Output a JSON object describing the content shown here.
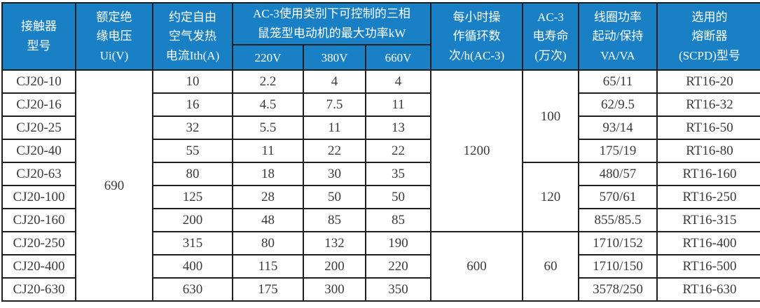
{
  "colors": {
    "header_bg": "#1a80c5",
    "header_text": "#ffffff",
    "body_text": "#3a3a3a",
    "border": "#1f1f1f"
  },
  "header": {
    "model": "接触器\n型号",
    "rated_insulation_voltage": "额定绝\n缘电压\nUi(V)",
    "thermal_current": "约定自由\n空气发热\n电流Ith(A)",
    "ac3_power_group": "AC-3使用类别下可控制的三相\n鼠笼型电动机的最大功率kW",
    "v220": "220V",
    "v380": "380V",
    "v660": "660V",
    "cycles_per_hour": "每小时操\n作循环数\n次/h(AC-3)",
    "electrical_life": "AC-3\n电寿命\n(万次)",
    "coil_power": "线圈功率\n起动/保持\nVA/VA",
    "fuse": "选用的\n熔断器\n(SCPD)型号"
  },
  "spans": {
    "ui": "690",
    "cycles_rows_1_7": "1200",
    "cycles_rows_8_10": "600",
    "life_rows_1_4": "100",
    "life_rows_5_7": "120",
    "life_rows_8_10": "60"
  },
  "rows": [
    {
      "model": "CJ20-10",
      "ith": "10",
      "kw220": "2.2",
      "kw380": "4",
      "kw660": "4",
      "coil": "65/11",
      "fuse": "RT16-20"
    },
    {
      "model": "CJ20-16",
      "ith": "16",
      "kw220": "4.5",
      "kw380": "7.5",
      "kw660": "11",
      "coil": "62/9.5",
      "fuse": "RT16-32"
    },
    {
      "model": "CJ20-25",
      "ith": "32",
      "kw220": "5.5",
      "kw380": "11",
      "kw660": "13",
      "coil": "93/14",
      "fuse": "RT16-50"
    },
    {
      "model": "CJ20-40",
      "ith": "55",
      "kw220": "11",
      "kw380": "22",
      "kw660": "22",
      "coil": "175/19",
      "fuse": "RT16-80"
    },
    {
      "model": "CJ20-63",
      "ith": "80",
      "kw220": "18",
      "kw380": "30",
      "kw660": "35",
      "coil": "480/57",
      "fuse": "RT16-160"
    },
    {
      "model": "CJ20-100",
      "ith": "125",
      "kw220": "28",
      "kw380": "50",
      "kw660": "50",
      "coil": "570/61",
      "fuse": "RT16-250"
    },
    {
      "model": "CJ20-160",
      "ith": "200",
      "kw220": "48",
      "kw380": "85",
      "kw660": "85",
      "coil": "855/85.5",
      "fuse": "RT16-315"
    },
    {
      "model": "CJ20-250",
      "ith": "315",
      "kw220": "80",
      "kw380": "132",
      "kw660": "190",
      "coil": "1710/152",
      "fuse": "RT16-400"
    },
    {
      "model": "CJ20-400",
      "ith": "400",
      "kw220": "115",
      "kw380": "200",
      "kw660": "220",
      "coil": "1710/150",
      "fuse": "RT16-500"
    },
    {
      "model": "CJ20-630",
      "ith": "630",
      "kw220": "175",
      "kw380": "300",
      "kw660": "350",
      "coil": "3578/250",
      "fuse": "RT16-630"
    }
  ]
}
